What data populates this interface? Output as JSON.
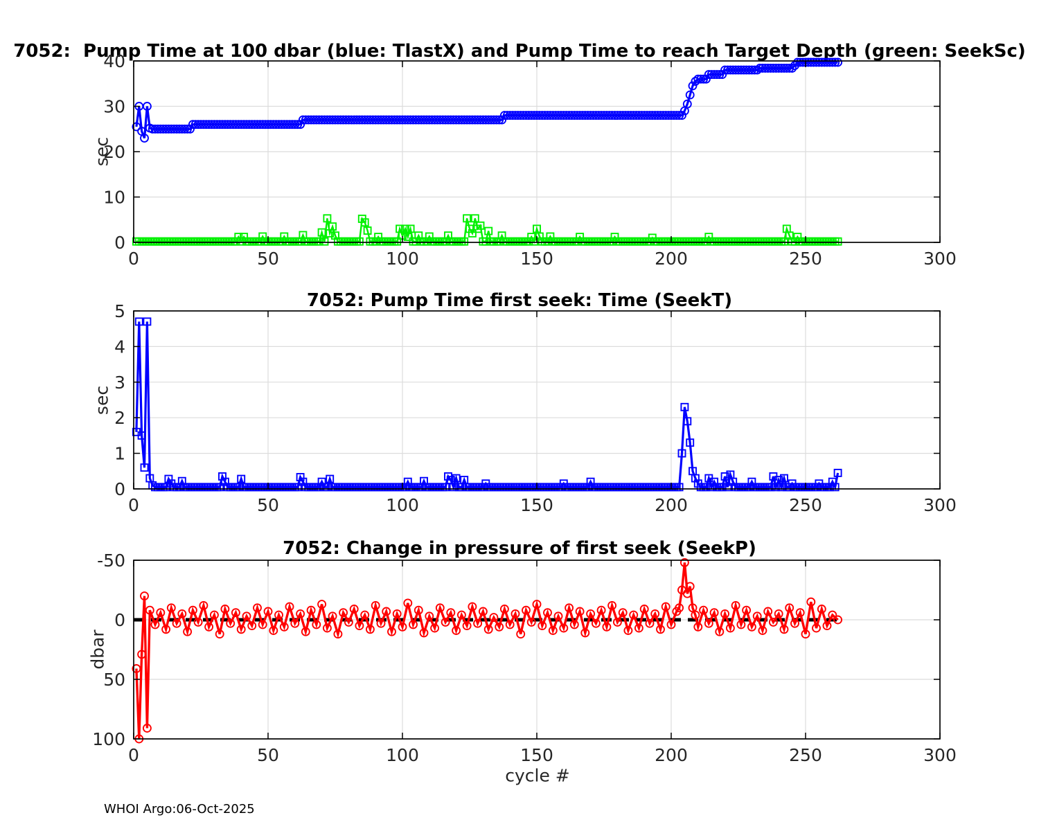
{
  "figure": {
    "footer": "WHOI Argo:06-Oct-2025"
  },
  "colors": {
    "blue": "#0000ff",
    "green": "#00f000",
    "red": "#ff0000",
    "black": "#000000",
    "grid": "#dcdcdc",
    "axis": "#000000"
  },
  "chart_data": [
    {
      "type": "line",
      "title": "7052:  Pump Time at 100 dbar (blue: TlastX) and Pump Time to reach Target Depth (green: SeekSc)",
      "xlabel": "",
      "ylabel": "sec",
      "xlim": [
        0,
        300
      ],
      "ylim": [
        0,
        40
      ],
      "y_reversed": false,
      "xticks": [
        0,
        50,
        100,
        150,
        200,
        250,
        300
      ],
      "yticks": [
        0,
        10,
        20,
        30,
        40
      ],
      "grid": true,
      "legend_position": "none",
      "series": [
        {
          "name": "TlastX",
          "color": "#0000ff",
          "marker": "circle",
          "width": 3.2,
          "points": [
            [
              1,
              25.5
            ],
            [
              2,
              30
            ],
            [
              3,
              24.5
            ],
            [
              4,
              23
            ],
            [
              5,
              30
            ],
            [
              6,
              25.2
            ],
            [
              205,
              29
            ],
            [
              206,
              30.5
            ],
            [
              207,
              32.5
            ],
            [
              208,
              34.5
            ],
            [
              209,
              35.5
            ],
            [
              246,
              39
            ]
          ],
          "segments": [
            {
              "x0": 7,
              "x1": 21,
              "y": 25
            },
            {
              "x0": 22,
              "x1": 62,
              "y": 26
            },
            {
              "x0": 63,
              "x1": 137,
              "y": 27
            },
            {
              "x0": 138,
              "x1": 204,
              "y": 28
            },
            {
              "x0": 210,
              "x1": 213,
              "y": 36
            },
            {
              "x0": 214,
              "x1": 219,
              "y": 37
            },
            {
              "x0": 220,
              "x1": 232,
              "y": 38
            },
            {
              "x0": 233,
              "x1": 245,
              "y": 38.4
            },
            {
              "x0": 247,
              "x1": 262,
              "y": 39.7
            }
          ],
          "spikes": []
        },
        {
          "name": "SeekSc",
          "color": "#00f000",
          "marker": "square",
          "width": 2.4,
          "points": [],
          "segments": [
            {
              "x0": 1,
              "x1": 262,
              "y": 0.2
            }
          ],
          "spikes": [
            [
              39,
              1.2
            ],
            [
              41,
              1.2
            ],
            [
              48,
              1.3
            ],
            [
              56,
              1.3
            ],
            [
              63,
              1.6
            ],
            [
              70,
              2.2
            ],
            [
              72,
              5.3
            ],
            [
              73,
              2.0
            ],
            [
              74,
              3.5
            ],
            [
              75,
              1.5
            ],
            [
              85,
              5.2
            ],
            [
              86,
              4.4
            ],
            [
              87,
              2.6
            ],
            [
              91,
              1.2
            ],
            [
              99,
              3.0
            ],
            [
              100,
              1.5
            ],
            [
              101,
              3.0
            ],
            [
              102,
              1.2
            ],
            [
              103,
              3.0
            ],
            [
              106,
              1.5
            ],
            [
              110,
              1.3
            ],
            [
              117,
              1.5
            ],
            [
              124,
              5.3
            ],
            [
              125,
              3.0
            ],
            [
              126,
              2.0
            ],
            [
              127,
              5.3
            ],
            [
              128,
              3.0
            ],
            [
              129,
              3.7
            ],
            [
              132,
              2.5
            ],
            [
              137,
              1.5
            ],
            [
              148,
              1.2
            ],
            [
              150,
              3.0
            ],
            [
              151,
              1.3
            ],
            [
              155,
              1.3
            ],
            [
              166,
              1.2
            ],
            [
              179,
              1.2
            ],
            [
              193,
              1.0
            ],
            [
              214,
              1.2
            ],
            [
              243,
              3.0
            ],
            [
              244,
              1.5
            ],
            [
              247,
              1.2
            ]
          ]
        }
      ]
    },
    {
      "type": "line",
      "title": "7052: Pump Time first seek: Time (SeekT)",
      "xlabel": "",
      "ylabel": "sec",
      "xlim": [
        0,
        300
      ],
      "ylim": [
        0,
        5
      ],
      "y_reversed": false,
      "xticks": [
        0,
        50,
        100,
        150,
        200,
        250,
        300
      ],
      "yticks": [
        0,
        1,
        2,
        3,
        4,
        5
      ],
      "grid": true,
      "legend_position": "none",
      "series": [
        {
          "name": "SeekT",
          "color": "#0000ff",
          "marker": "square",
          "width": 3.2,
          "points": [
            [
              1,
              1.6
            ],
            [
              2,
              4.7
            ],
            [
              3,
              1.5
            ],
            [
              4,
              0.6
            ],
            [
              5,
              4.7
            ],
            [
              6,
              0.3
            ],
            [
              7,
              0.1
            ]
          ],
          "segments": [
            {
              "x0": 8,
              "x1": 262,
              "y": 0.05
            }
          ],
          "spikes": [
            [
              13,
              0.28
            ],
            [
              14,
              0.15
            ],
            [
              18,
              0.22
            ],
            [
              33,
              0.35
            ],
            [
              34,
              0.2
            ],
            [
              40,
              0.28
            ],
            [
              62,
              0.33
            ],
            [
              63,
              0.2
            ],
            [
              70,
              0.2
            ],
            [
              73,
              0.28
            ],
            [
              102,
              0.2
            ],
            [
              108,
              0.22
            ],
            [
              117,
              0.35
            ],
            [
              118,
              0.25
            ],
            [
              120,
              0.3
            ],
            [
              123,
              0.25
            ],
            [
              131,
              0.15
            ],
            [
              160,
              0.15
            ],
            [
              170,
              0.2
            ],
            [
              204,
              1.0
            ],
            [
              205,
              2.3
            ],
            [
              206,
              1.9
            ],
            [
              207,
              1.3
            ],
            [
              208,
              0.5
            ],
            [
              209,
              0.3
            ],
            [
              210,
              0.15
            ],
            [
              214,
              0.3
            ],
            [
              216,
              0.2
            ],
            [
              220,
              0.35
            ],
            [
              222,
              0.4
            ],
            [
              223,
              0.2
            ],
            [
              230,
              0.2
            ],
            [
              238,
              0.35
            ],
            [
              240,
              0.25
            ],
            [
              242,
              0.3
            ],
            [
              245,
              0.15
            ],
            [
              255,
              0.15
            ],
            [
              260,
              0.2
            ],
            [
              262,
              0.45
            ]
          ]
        }
      ]
    },
    {
      "type": "line",
      "title": "7052: Change in pressure of first seek (SeekP)",
      "xlabel": "cycle #",
      "ylabel": "dbar",
      "xlim": [
        0,
        300
      ],
      "ylim": [
        -50,
        100
      ],
      "y_reversed": true,
      "xticks": [
        0,
        50,
        100,
        150,
        200,
        250,
        300
      ],
      "yticks": [
        -50,
        0,
        50,
        100
      ],
      "grid": true,
      "legend_position": "none",
      "series": [
        {
          "name": "zero-reference",
          "color": "#000000",
          "marker": "none",
          "width": 5,
          "dash": [
            15,
            10
          ],
          "points": [
            [
              0,
              0
            ],
            [
              262,
              0
            ]
          ],
          "segments": [],
          "spikes": []
        },
        {
          "name": "SeekP",
          "color": "#ff0000",
          "marker": "circle",
          "width": 3.4,
          "points": [
            [
              1,
              41
            ],
            [
              2,
              100
            ],
            [
              3,
              29
            ],
            [
              4,
              -20
            ],
            [
              5,
              91
            ],
            [
              6,
              -8
            ],
            [
              8,
              4
            ],
            [
              10,
              -6
            ],
            [
              12,
              8
            ],
            [
              14,
              -10
            ],
            [
              16,
              3
            ],
            [
              18,
              -5
            ],
            [
              20,
              10
            ],
            [
              22,
              -8
            ],
            [
              24,
              2
            ],
            [
              26,
              -12
            ],
            [
              28,
              6
            ],
            [
              30,
              -4
            ],
            [
              32,
              12
            ],
            [
              34,
              -9
            ],
            [
              36,
              3
            ],
            [
              38,
              -6
            ],
            [
              40,
              8
            ],
            [
              42,
              -3
            ],
            [
              44,
              5
            ],
            [
              46,
              -10
            ],
            [
              48,
              4
            ],
            [
              50,
              -7
            ],
            [
              52,
              9
            ],
            [
              54,
              -4
            ],
            [
              56,
              6
            ],
            [
              58,
              -11
            ],
            [
              60,
              3
            ],
            [
              62,
              -5
            ],
            [
              64,
              10
            ],
            [
              66,
              -8
            ],
            [
              68,
              4
            ],
            [
              70,
              -13
            ],
            [
              72,
              7
            ],
            [
              74,
              -3
            ],
            [
              76,
              12
            ],
            [
              78,
              -6
            ],
            [
              80,
              2
            ],
            [
              82,
              -9
            ],
            [
              84,
              5
            ],
            [
              86,
              -4
            ],
            [
              88,
              8
            ],
            [
              90,
              -12
            ],
            [
              92,
              3
            ],
            [
              94,
              -7
            ],
            [
              96,
              10
            ],
            [
              98,
              -5
            ],
            [
              100,
              6
            ],
            [
              102,
              -14
            ],
            [
              104,
              4
            ],
            [
              106,
              -8
            ],
            [
              108,
              11
            ],
            [
              110,
              -3
            ],
            [
              112,
              7
            ],
            [
              114,
              -10
            ],
            [
              116,
              2
            ],
            [
              118,
              -6
            ],
            [
              120,
              9
            ],
            [
              122,
              -4
            ],
            [
              124,
              5
            ],
            [
              126,
              -11
            ],
            [
              128,
              3
            ],
            [
              130,
              -7
            ],
            [
              132,
              8
            ],
            [
              134,
              -2
            ],
            [
              136,
              6
            ],
            [
              138,
              -9
            ],
            [
              140,
              4
            ],
            [
              142,
              -5
            ],
            [
              144,
              12
            ],
            [
              146,
              -8
            ],
            [
              148,
              2
            ],
            [
              150,
              -13
            ],
            [
              152,
              5
            ],
            [
              154,
              -6
            ],
            [
              156,
              9
            ],
            [
              158,
              -3
            ],
            [
              160,
              7
            ],
            [
              162,
              -10
            ],
            [
              164,
              4
            ],
            [
              166,
              -7
            ],
            [
              168,
              11
            ],
            [
              170,
              -5
            ],
            [
              172,
              3
            ],
            [
              174,
              -8
            ],
            [
              176,
              6
            ],
            [
              178,
              -12
            ],
            [
              180,
              2
            ],
            [
              182,
              -6
            ],
            [
              184,
              9
            ],
            [
              186,
              -4
            ],
            [
              188,
              7
            ],
            [
              190,
              -9
            ],
            [
              192,
              3
            ],
            [
              194,
              -5
            ],
            [
              196,
              8
            ],
            [
              198,
              -11
            ],
            [
              200,
              4
            ],
            [
              202,
              -7
            ],
            [
              203,
              -10
            ],
            [
              204,
              -25
            ],
            [
              205,
              -48
            ],
            [
              206,
              -22
            ],
            [
              207,
              -28
            ],
            [
              208,
              -10
            ],
            [
              209,
              -4
            ],
            [
              210,
              6
            ],
            [
              212,
              -8
            ],
            [
              214,
              3
            ],
            [
              216,
              -6
            ],
            [
              218,
              10
            ],
            [
              220,
              -5
            ],
            [
              222,
              7
            ],
            [
              224,
              -12
            ],
            [
              226,
              4
            ],
            [
              228,
              -8
            ],
            [
              230,
              6
            ],
            [
              232,
              -3
            ],
            [
              234,
              9
            ],
            [
              236,
              -7
            ],
            [
              238,
              2
            ],
            [
              240,
              -5
            ],
            [
              242,
              8
            ],
            [
              244,
              -10
            ],
            [
              246,
              3
            ],
            [
              248,
              -6
            ],
            [
              250,
              12
            ],
            [
              252,
              -15
            ],
            [
              254,
              7
            ],
            [
              256,
              -9
            ],
            [
              258,
              5
            ],
            [
              260,
              -4
            ],
            [
              262,
              0
            ]
          ],
          "segments": [],
          "spikes": []
        }
      ]
    }
  ]
}
